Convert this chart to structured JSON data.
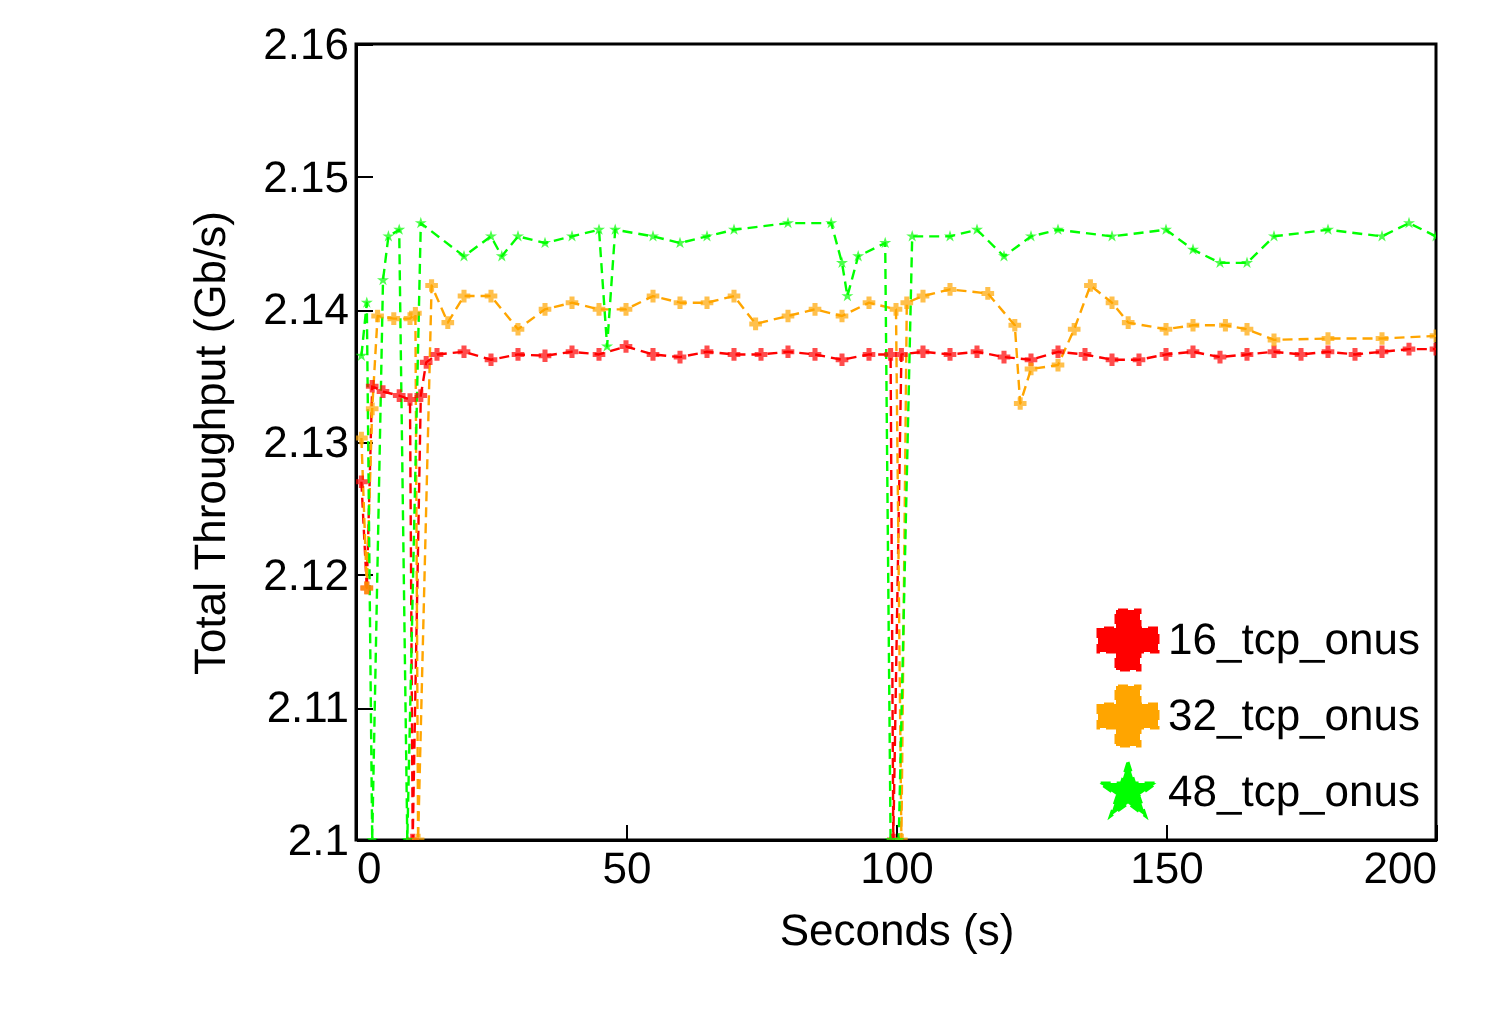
{
  "chart_data": {
    "type": "line",
    "xlabel": "Seconds (s)",
    "ylabel": "Total Throughput (Gb/s)",
    "xlim": [
      0,
      200
    ],
    "xticks": [
      0,
      50,
      100,
      150,
      200
    ],
    "ylim": [
      2.1,
      2.16
    ],
    "yticks": [
      2.1,
      2.11,
      2.12,
      2.13,
      2.14,
      2.15,
      2.16
    ],
    "grid": false,
    "legend": "bottom right",
    "line_style": "dashed",
    "series": [
      {
        "name": "16_tcp_onus",
        "color": "#ff0000",
        "marker": "cross",
        "x": [
          1,
          2,
          3,
          5,
          8,
          10,
          10.5,
          12,
          13,
          15,
          20,
          25,
          30,
          35,
          40,
          45,
          50,
          55,
          60,
          65,
          70,
          75,
          80,
          85,
          90,
          95,
          99,
          99.5,
          101,
          105,
          110,
          115,
          120,
          125,
          130,
          135,
          140,
          145,
          150,
          155,
          160,
          165,
          170,
          175,
          180,
          185,
          190,
          195,
          200
        ],
        "values": [
          2.127,
          2.119,
          2.1342,
          2.1338,
          2.1335,
          2.1332,
          2.1,
          2.1335,
          2.136,
          2.1366,
          2.1368,
          2.1362,
          2.1366,
          2.1365,
          2.1368,
          2.1366,
          2.1372,
          2.1366,
          2.1364,
          2.1368,
          2.1366,
          2.1366,
          2.1368,
          2.1366,
          2.1362,
          2.1366,
          2.1366,
          2.1,
          2.1366,
          2.1368,
          2.1366,
          2.1368,
          2.1364,
          2.1362,
          2.1368,
          2.1366,
          2.1362,
          2.1362,
          2.1366,
          2.1368,
          2.1364,
          2.1366,
          2.1368,
          2.1366,
          2.1368,
          2.1366,
          2.1368,
          2.137,
          2.137
        ]
      },
      {
        "name": "32_tcp_onus",
        "color": "#ffa500",
        "marker": "cross",
        "x": [
          1,
          2,
          3,
          4,
          7,
          10,
          11,
          11.5,
          14,
          17,
          20,
          25,
          30,
          35,
          40,
          45,
          50,
          55,
          60,
          65,
          70,
          74,
          80,
          85,
          90,
          95,
          100,
          101,
          102,
          105,
          110,
          117,
          122,
          123,
          125,
          130,
          133,
          136,
          140,
          143,
          150,
          155,
          161,
          165,
          170,
          180,
          190,
          200
        ],
        "values": [
          2.1303,
          2.119,
          2.1325,
          2.1395,
          2.1393,
          2.1393,
          2.1397,
          2.1,
          2.1418,
          2.139,
          2.141,
          2.141,
          2.1385,
          2.14,
          2.1405,
          2.14,
          2.14,
          2.141,
          2.1405,
          2.1405,
          2.141,
          2.1389,
          2.1395,
          2.14,
          2.1395,
          2.1405,
          2.14,
          2.1,
          2.1405,
          2.141,
          2.1415,
          2.1412,
          2.1388,
          2.1329,
          2.1355,
          2.1358,
          2.1385,
          2.1418,
          2.1405,
          2.139,
          2.1385,
          2.1388,
          2.1388,
          2.1385,
          2.1377,
          2.1378,
          2.1378,
          2.138
        ]
      },
      {
        "name": "48_tcp_onus",
        "color": "#00ff00",
        "marker": "star",
        "x": [
          1,
          2,
          3,
          5,
          6,
          8,
          9.5,
          12,
          20,
          25,
          27,
          30,
          35,
          40,
          45,
          46.5,
          48,
          55,
          60,
          65,
          70,
          80,
          88,
          90,
          91,
          93,
          98,
          99,
          100.5,
          103,
          110,
          115,
          120,
          125,
          130,
          140,
          150,
          155,
          160,
          165,
          170,
          180,
          190,
          195,
          200
        ],
        "values": [
          2.1365,
          2.1405,
          2.1,
          2.1422,
          2.1455,
          2.146,
          2.1,
          2.1465,
          2.144,
          2.1455,
          2.144,
          2.1455,
          2.145,
          2.1455,
          2.146,
          2.1372,
          2.146,
          2.1455,
          2.145,
          2.1455,
          2.146,
          2.1465,
          2.1465,
          2.1435,
          2.141,
          2.144,
          2.145,
          2.1,
          2.1,
          2.1455,
          2.1455,
          2.146,
          2.144,
          2.1455,
          2.146,
          2.1455,
          2.146,
          2.1445,
          2.1435,
          2.1435,
          2.1455,
          2.146,
          2.1455,
          2.1465,
          2.1455
        ]
      }
    ]
  }
}
